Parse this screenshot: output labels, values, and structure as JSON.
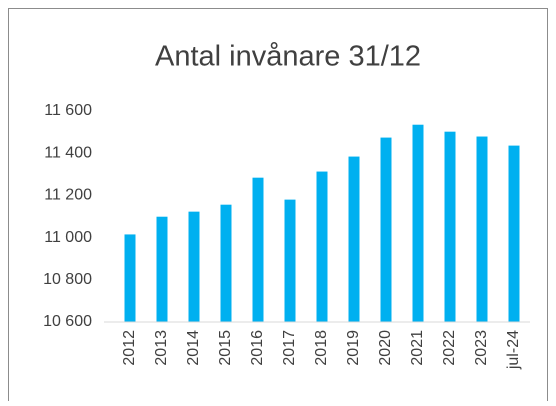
{
  "chart_data": {
    "type": "bar",
    "title": "Antal invånare 31/12",
    "categories": [
      "2012",
      "2013",
      "2014",
      "2015",
      "2016",
      "2017",
      "2018",
      "2019",
      "2020",
      "2021",
      "2022",
      "2023",
      "jul-24"
    ],
    "values": [
      11015,
      11099,
      11123,
      11156,
      11284,
      11180,
      11313,
      11384,
      11474,
      11535,
      11502,
      11479,
      11436
    ],
    "color": "#00b0f0",
    "ylim": [
      10600,
      11600
    ],
    "yticks": [
      {
        "value": 10600,
        "label": "10 600"
      },
      {
        "value": 10800,
        "label": "10 800"
      },
      {
        "value": 11000,
        "label": "11 000"
      },
      {
        "value": 11200,
        "label": "11 200"
      },
      {
        "value": 11400,
        "label": "11 400"
      },
      {
        "value": 11600,
        "label": "11 600"
      }
    ],
    "grid": false
  }
}
